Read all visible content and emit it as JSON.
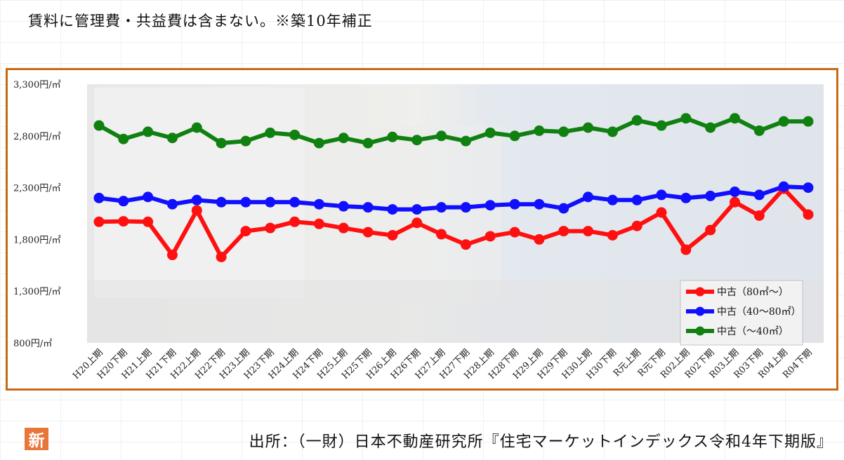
{
  "header_note": "賃料に管理費・共益費は含まない。※築10年補正",
  "source_text": "出所：（一財）日本不動産研究所『住宅マーケットインデックス令和4年下期版』",
  "shin_icon_text": "新",
  "colors": {
    "frame": "#c86a14",
    "red": "#ff1010",
    "blue": "#1010ff",
    "green": "#108010"
  },
  "chart_data": {
    "type": "line",
    "title": "",
    "xlabel": "",
    "ylabel": "",
    "ylim": [
      800,
      3300
    ],
    "yticks": [
      "800円/㎡",
      "1,300円/㎡",
      "1,800円/㎡",
      "2,300円/㎡",
      "2,800円/㎡",
      "3,300円/㎡"
    ],
    "ytick_values": [
      800,
      1300,
      1800,
      2300,
      2800,
      3300
    ],
    "categories": [
      "H20上期",
      "H20下期",
      "H21上期",
      "H21下期",
      "H22上期",
      "H22下期",
      "H23上期",
      "H23下期",
      "H24上期",
      "H24下期",
      "H25上期",
      "H25下期",
      "H26上期",
      "H26下期",
      "H27上期",
      "H27下期",
      "H28上期",
      "H28下期",
      "H29上期",
      "H29下期",
      "H30上期",
      "H30下期",
      "R元上期",
      "R元下期",
      "R02上期",
      "R02下期",
      "R03上期",
      "R03下期",
      "R04上期",
      "R04下期"
    ],
    "legend_position": "bottom-right",
    "series": [
      {
        "name": "中古（80㎡～）",
        "color": "#ff1010",
        "values": [
          1970,
          1975,
          1970,
          1650,
          2080,
          1630,
          1880,
          1910,
          1970,
          1950,
          1910,
          1870,
          1840,
          1960,
          1850,
          1750,
          1830,
          1870,
          1800,
          1880,
          1880,
          1840,
          1930,
          2060,
          1700,
          1890,
          2160,
          2030,
          2290,
          2040
        ]
      },
      {
        "name": "中古（40～80㎡）",
        "color": "#1010ff",
        "values": [
          2200,
          2170,
          2210,
          2140,
          2180,
          2160,
          2160,
          2160,
          2160,
          2140,
          2120,
          2110,
          2090,
          2090,
          2110,
          2110,
          2130,
          2140,
          2140,
          2100,
          2210,
          2180,
          2180,
          2230,
          2200,
          2220,
          2260,
          2230,
          2310,
          2300
        ]
      },
      {
        "name": "中古（～40㎡）",
        "color": "#108010",
        "values": [
          2900,
          2770,
          2840,
          2780,
          2880,
          2730,
          2750,
          2830,
          2810,
          2730,
          2780,
          2730,
          2790,
          2760,
          2800,
          2750,
          2830,
          2800,
          2850,
          2840,
          2880,
          2840,
          2950,
          2900,
          2970,
          2880,
          2970,
          2850,
          2940,
          2940
        ]
      }
    ]
  }
}
